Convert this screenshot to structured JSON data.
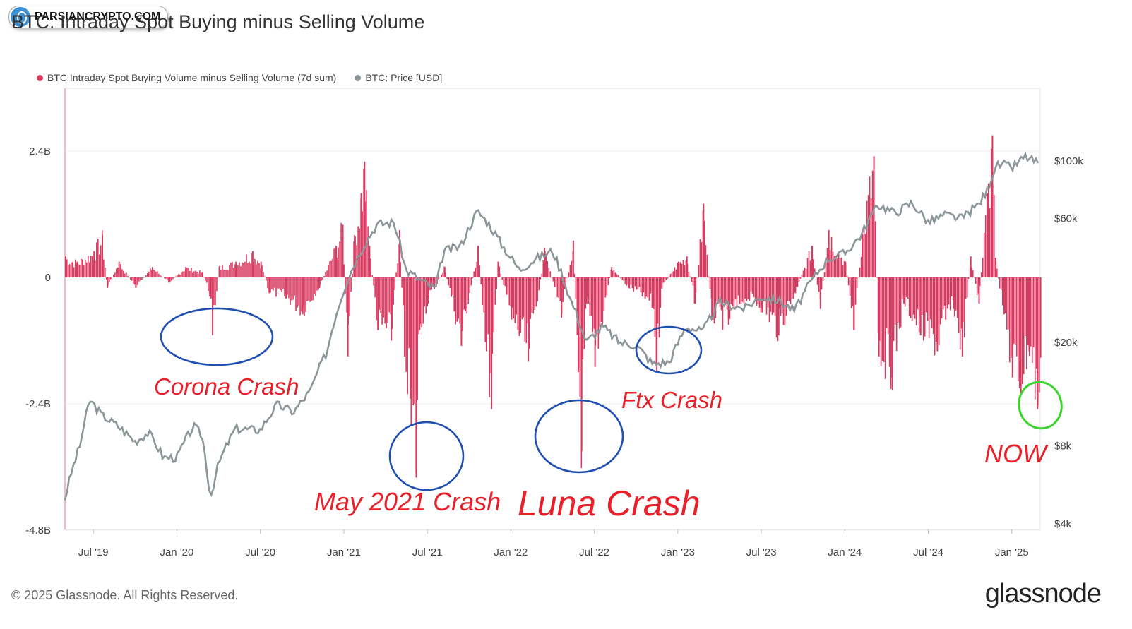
{
  "watermark": {
    "text": "PARSIANCRYPTO.COM"
  },
  "title": "BTC: Intraday Spot Buying minus Selling Volume",
  "footer": {
    "copyright": "© 2025 Glassnode. All Rights Reserved.",
    "brand": "glassnode"
  },
  "colors": {
    "volume": "#d83a60",
    "price": "#8c9699",
    "annotation": "#e8202a",
    "circle": "#1f4fb0",
    "now_circle": "#39d52a"
  },
  "chart_data": {
    "type": "bar",
    "title": "BTC: Intraday Spot Buying minus Selling Volume",
    "legend": [
      {
        "name": "BTC Intraday Spot Buying Volume minus Selling Volume (7d sum)",
        "color": "#d83a60"
      },
      {
        "name": "BTC: Price [USD]",
        "color": "#8c9699"
      }
    ],
    "x_ticks": [
      "Jul '19",
      "Jan '20",
      "Jul '20",
      "Jan '21",
      "Jul '21",
      "Jan '22",
      "Jul '22",
      "Jan '23",
      "Jul '23",
      "Jan '24",
      "Jul '24",
      "Jan '25"
    ],
    "x_range": [
      2019.33,
      2025.17
    ],
    "y_left": {
      "ticks": [
        "2.4B",
        "0",
        "-2.4B",
        "-4.8B"
      ],
      "tick_values": [
        2.4,
        0,
        -2.4,
        -4.8
      ],
      "range": [
        -4.8,
        3.6
      ],
      "unit": "B"
    },
    "y_right": {
      "ticks": [
        "$100k",
        "$60k",
        "$20k",
        "$8k",
        "$4k"
      ],
      "tick_values": [
        100000,
        60000,
        20000,
        8000,
        4000
      ],
      "scale": "log"
    },
    "series": [
      {
        "name": "BTC Intraday Spot Buying Volume minus Selling Volume (7d sum)",
        "unit": "B",
        "points": [
          [
            2019.33,
            0.4
          ],
          [
            2019.4,
            0.3
          ],
          [
            2019.5,
            0.5
          ],
          [
            2019.55,
            0.8
          ],
          [
            2019.58,
            -0.2
          ],
          [
            2019.65,
            0.3
          ],
          [
            2019.75,
            -0.2
          ],
          [
            2019.85,
            0.2
          ],
          [
            2019.95,
            -0.1
          ],
          [
            2020.05,
            0.2
          ],
          [
            2020.15,
            0.1
          ],
          [
            2020.2,
            -0.4
          ],
          [
            2020.21,
            -1.1
          ],
          [
            2020.25,
            0.2
          ],
          [
            2020.35,
            0.3
          ],
          [
            2020.45,
            0.5
          ],
          [
            2020.5,
            0.3
          ],
          [
            2020.55,
            -0.3
          ],
          [
            2020.65,
            -0.4
          ],
          [
            2020.75,
            -0.7
          ],
          [
            2020.85,
            -0.2
          ],
          [
            2020.95,
            0.6
          ],
          [
            2020.99,
            1.0
          ],
          [
            2021.02,
            -1.5
          ],
          [
            2021.06,
            0.8
          ],
          [
            2021.1,
            1.6
          ],
          [
            2021.12,
            2.2
          ],
          [
            2021.15,
            0.6
          ],
          [
            2021.2,
            -1.0
          ],
          [
            2021.28,
            -1.2
          ],
          [
            2021.33,
            0.9
          ],
          [
            2021.36,
            -1.5
          ],
          [
            2021.4,
            -2.8
          ],
          [
            2021.43,
            -3.8
          ],
          [
            2021.45,
            -1.0
          ],
          [
            2021.5,
            -0.5
          ],
          [
            2021.6,
            0.2
          ],
          [
            2021.7,
            -1.3
          ],
          [
            2021.8,
            0.6
          ],
          [
            2021.85,
            -1.4
          ],
          [
            2021.88,
            -2.5
          ],
          [
            2021.92,
            0.3
          ],
          [
            2022.0,
            -0.8
          ],
          [
            2022.1,
            -1.6
          ],
          [
            2022.2,
            0.5
          ],
          [
            2022.3,
            -0.7
          ],
          [
            2022.37,
            0.7
          ],
          [
            2022.4,
            -1.8
          ],
          [
            2022.42,
            -3.3
          ],
          [
            2022.45,
            -0.5
          ],
          [
            2022.5,
            -1.7
          ],
          [
            2022.6,
            0.2
          ],
          [
            2022.7,
            -0.2
          ],
          [
            2022.8,
            -0.4
          ],
          [
            2022.85,
            -0.6
          ],
          [
            2022.87,
            -1.8
          ],
          [
            2022.9,
            -0.2
          ],
          [
            2023.0,
            0.3
          ],
          [
            2023.05,
            0.4
          ],
          [
            2023.1,
            -0.5
          ],
          [
            2023.15,
            1.4
          ],
          [
            2023.2,
            -0.8
          ],
          [
            2023.3,
            -0.9
          ],
          [
            2023.4,
            -0.4
          ],
          [
            2023.5,
            -0.6
          ],
          [
            2023.6,
            -1.1
          ],
          [
            2023.7,
            -0.3
          ],
          [
            2023.8,
            0.6
          ],
          [
            2023.85,
            -0.6
          ],
          [
            2023.9,
            0.9
          ],
          [
            2024.0,
            0.3
          ],
          [
            2024.05,
            -1.0
          ],
          [
            2024.1,
            0.8
          ],
          [
            2024.17,
            2.3
          ],
          [
            2024.2,
            -1.5
          ],
          [
            2024.28,
            -1.9
          ],
          [
            2024.35,
            -0.5
          ],
          [
            2024.45,
            -1.1
          ],
          [
            2024.55,
            -1.4
          ],
          [
            2024.6,
            -0.8
          ],
          [
            2024.65,
            -0.6
          ],
          [
            2024.7,
            -1.5
          ],
          [
            2024.75,
            0.4
          ],
          [
            2024.8,
            -0.5
          ],
          [
            2024.85,
            1.6
          ],
          [
            2024.88,
            2.7
          ],
          [
            2024.9,
            0.3
          ],
          [
            2024.95,
            -0.7
          ],
          [
            2025.0,
            -1.9
          ],
          [
            2025.05,
            -2.2
          ],
          [
            2025.1,
            -1.4
          ],
          [
            2025.15,
            -2.5
          ]
        ]
      },
      {
        "name": "BTC: Price [USD]",
        "unit": "USD",
        "points": [
          [
            2019.33,
            5000
          ],
          [
            2019.42,
            8000
          ],
          [
            2019.48,
            12000
          ],
          [
            2019.55,
            10500
          ],
          [
            2019.65,
            9500
          ],
          [
            2019.75,
            8300
          ],
          [
            2019.83,
            9000
          ],
          [
            2019.92,
            7200
          ],
          [
            2020.0,
            7200
          ],
          [
            2020.1,
            9500
          ],
          [
            2020.15,
            8800
          ],
          [
            2020.2,
            5000
          ],
          [
            2020.25,
            6800
          ],
          [
            2020.35,
            9300
          ],
          [
            2020.5,
            9200
          ],
          [
            2020.6,
            11500
          ],
          [
            2020.7,
            10800
          ],
          [
            2020.8,
            13000
          ],
          [
            2020.9,
            18500
          ],
          [
            2021.0,
            32000
          ],
          [
            2021.1,
            45000
          ],
          [
            2021.2,
            57000
          ],
          [
            2021.3,
            58000
          ],
          [
            2021.37,
            38000
          ],
          [
            2021.45,
            35000
          ],
          [
            2021.55,
            32000
          ],
          [
            2021.6,
            45000
          ],
          [
            2021.7,
            47000
          ],
          [
            2021.8,
            64000
          ],
          [
            2021.87,
            57000
          ],
          [
            2021.95,
            47000
          ],
          [
            2022.05,
            38000
          ],
          [
            2022.15,
            42000
          ],
          [
            2022.25,
            45000
          ],
          [
            2022.35,
            30000
          ],
          [
            2022.45,
            20000
          ],
          [
            2022.55,
            23000
          ],
          [
            2022.65,
            20000
          ],
          [
            2022.75,
            19500
          ],
          [
            2022.85,
            16500
          ],
          [
            2022.95,
            16800
          ],
          [
            2023.05,
            23000
          ],
          [
            2023.15,
            22000
          ],
          [
            2023.25,
            28500
          ],
          [
            2023.4,
            27000
          ],
          [
            2023.5,
            30000
          ],
          [
            2023.6,
            29000
          ],
          [
            2023.7,
            26500
          ],
          [
            2023.8,
            34500
          ],
          [
            2023.9,
            42000
          ],
          [
            2024.0,
            44000
          ],
          [
            2024.1,
            52000
          ],
          [
            2024.2,
            68000
          ],
          [
            2024.3,
            63000
          ],
          [
            2024.4,
            69000
          ],
          [
            2024.5,
            58000
          ],
          [
            2024.6,
            62000
          ],
          [
            2024.7,
            60000
          ],
          [
            2024.8,
            68000
          ],
          [
            2024.85,
            76000
          ],
          [
            2024.9,
            95000
          ],
          [
            2024.95,
            97000
          ],
          [
            2025.0,
            94000
          ],
          [
            2025.08,
            104000
          ],
          [
            2025.17,
            97000
          ]
        ]
      }
    ],
    "annotations": [
      {
        "text": "Corona Crash",
        "x": 2020.21,
        "y": -1.0
      },
      {
        "text": "May 2021 Crash",
        "x": 2021.43,
        "y": -3.4
      },
      {
        "text": "Luna Crash",
        "x": 2022.42,
        "y": -3.0
      },
      {
        "text": "Ftx Crash",
        "x": 2022.87,
        "y": -1.4
      },
      {
        "text": "NOW",
        "x": 2025.15,
        "y": -2.5
      }
    ]
  }
}
